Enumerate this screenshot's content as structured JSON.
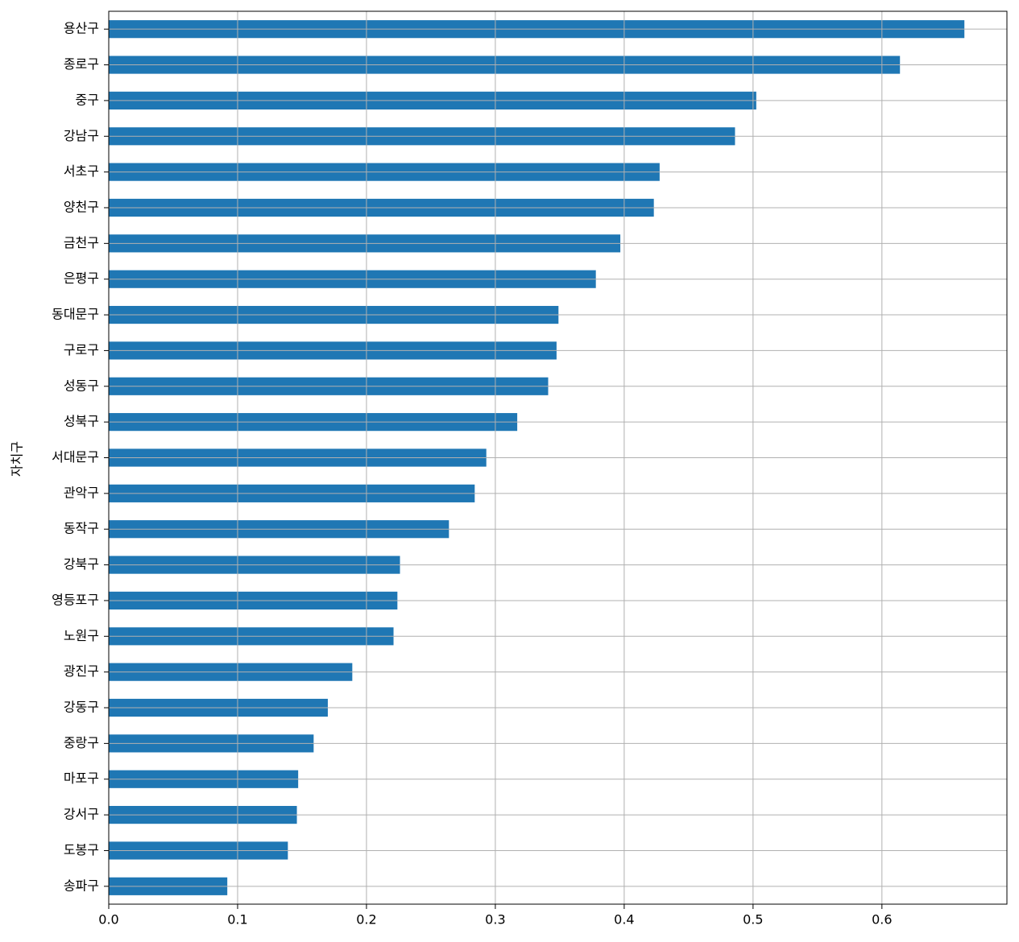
{
  "chart_data": {
    "type": "barh",
    "y_label": "자치구",
    "categories": [
      "용산구",
      "종로구",
      "중구",
      "강남구",
      "서초구",
      "양천구",
      "금천구",
      "은평구",
      "동대문구",
      "구로구",
      "성동구",
      "성북구",
      "서대문구",
      "관악구",
      "동작구",
      "강북구",
      "영등포구",
      "노원구",
      "광진구",
      "강동구",
      "중랑구",
      "마포구",
      "강서구",
      "도봉구",
      "송파구"
    ],
    "values": [
      0.664,
      0.614,
      0.5025,
      0.486,
      0.4275,
      0.423,
      0.397,
      0.378,
      0.349,
      0.3475,
      0.341,
      0.317,
      0.293,
      0.284,
      0.264,
      0.226,
      0.224,
      0.221,
      0.189,
      0.17,
      0.159,
      0.147,
      0.146,
      0.139,
      0.092
    ],
    "color": "#1f77b4",
    "xlim": [
      0,
      0.697
    ],
    "xticks": [
      {
        "value": 0,
        "label": "0.0"
      },
      0.1,
      0.2,
      0.3,
      0.4,
      0.5,
      0.6
    ],
    "grid": true
  }
}
